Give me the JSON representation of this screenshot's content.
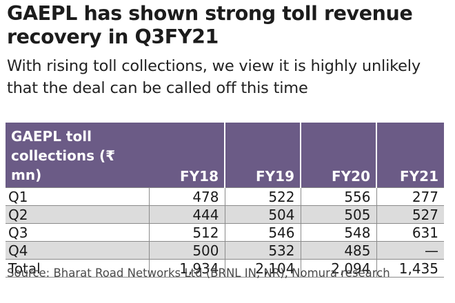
{
  "title": "GAEPL has shown strong toll revenue recovery in Q3FY21",
  "subtitle": "With rising toll collections, we view it is highly unlikely that the deal can be called off this time",
  "chart_data": {
    "type": "table",
    "corner_header": "GAEPL toll collections (₹ mn)",
    "columns": [
      "FY18",
      "FY19",
      "FY20",
      "FY21"
    ],
    "rows": [
      {
        "label": "Q1",
        "values": [
          "478",
          "522",
          "556",
          "277"
        ]
      },
      {
        "label": "Q2",
        "values": [
          "444",
          "504",
          "505",
          "527"
        ]
      },
      {
        "label": "Q3",
        "values": [
          "512",
          "546",
          "548",
          "631"
        ]
      },
      {
        "label": "Q4",
        "values": [
          "500",
          "532",
          "485",
          "—"
        ]
      },
      {
        "label": "Total",
        "values": [
          "1,934",
          "2,104",
          "2,094",
          "1,435"
        ]
      }
    ]
  },
  "source": "Source: Bharat Road Networks Ltd (BRNL IN, NR), Nomura research",
  "colors": {
    "header_bg": "#6b5b86",
    "row_shade": "#dcdcdc"
  }
}
